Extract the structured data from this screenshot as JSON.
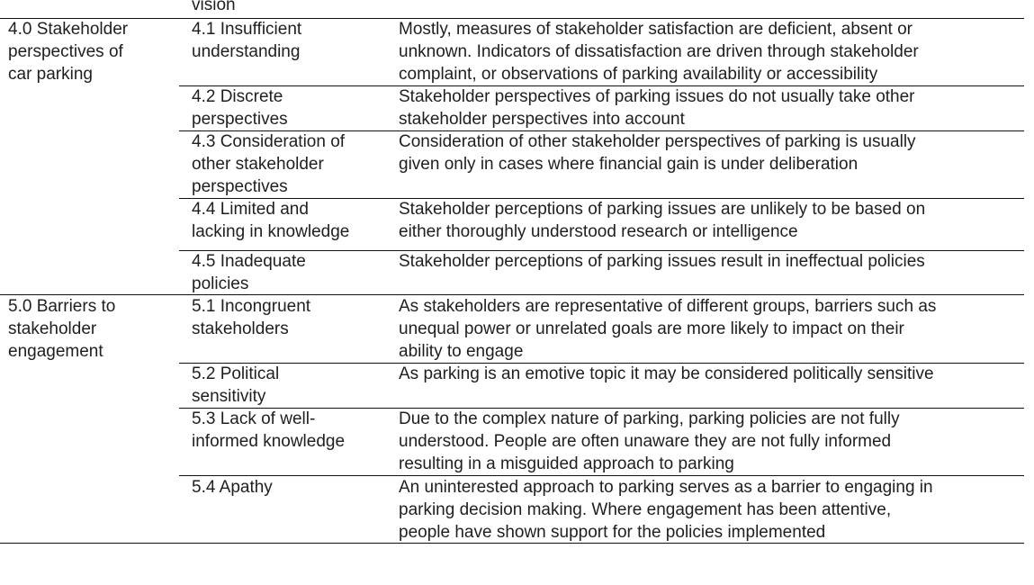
{
  "table": {
    "continued_text": "vision",
    "groups": [
      {
        "category": "4.0 Stakeholder\nperspectives of\ncar parking",
        "rows": [
          {
            "label": "4.1 Insufficient\nunderstanding",
            "description": "Mostly, measures of stakeholder satisfaction are deficient, absent or\nunknown. Indicators of dissatisfaction are driven through stakeholder\ncomplaint, or observations of parking availability or accessibility"
          },
          {
            "label": "4.2 Discrete\nperspectives",
            "description": "Stakeholder perspectives of parking issues do not usually take other\nstakeholder perspectives into account"
          },
          {
            "label": "4.3 Consideration of\nother stakeholder\nperspectives",
            "description": "Consideration of other stakeholder perspectives of parking is usually\ngiven only in cases where financial gain is under deliberation"
          },
          {
            "label": "4.4 Limited and\nlacking in knowledge",
            "description": "Stakeholder perceptions of parking issues are unlikely to be based on\neither thoroughly understood research or intelligence"
          },
          {
            "label": "4.5 Inadequate\npolicies",
            "description": "Stakeholder perceptions of parking issues result in ineffectual policies"
          }
        ]
      },
      {
        "category": "5.0 Barriers to\nstakeholder\nengagement",
        "rows": [
          {
            "label": "5.1 Incongruent\nstakeholders",
            "description": "As stakeholders are representative of different groups, barriers such as\nunequal power or unrelated goals are more likely to impact on their\nability to engage"
          },
          {
            "label": "5.2 Political\nsensitivity",
            "description": "As parking is an emotive topic it may be considered politically sensitive"
          },
          {
            "label": "5.3 Lack of well-\ninformed knowledge",
            "description": "Due to the complex nature of parking, parking policies are not fully\nunderstood. People are often unaware they are not fully informed\nresulting in a misguided approach to parking"
          },
          {
            "label": "5.4 Apathy",
            "description": "An uninterested approach to parking serves as a barrier to engaging in\nparking decision making. Where engagement has been attentive,\npeople have shown support for the policies implemented"
          }
        ]
      }
    ]
  }
}
